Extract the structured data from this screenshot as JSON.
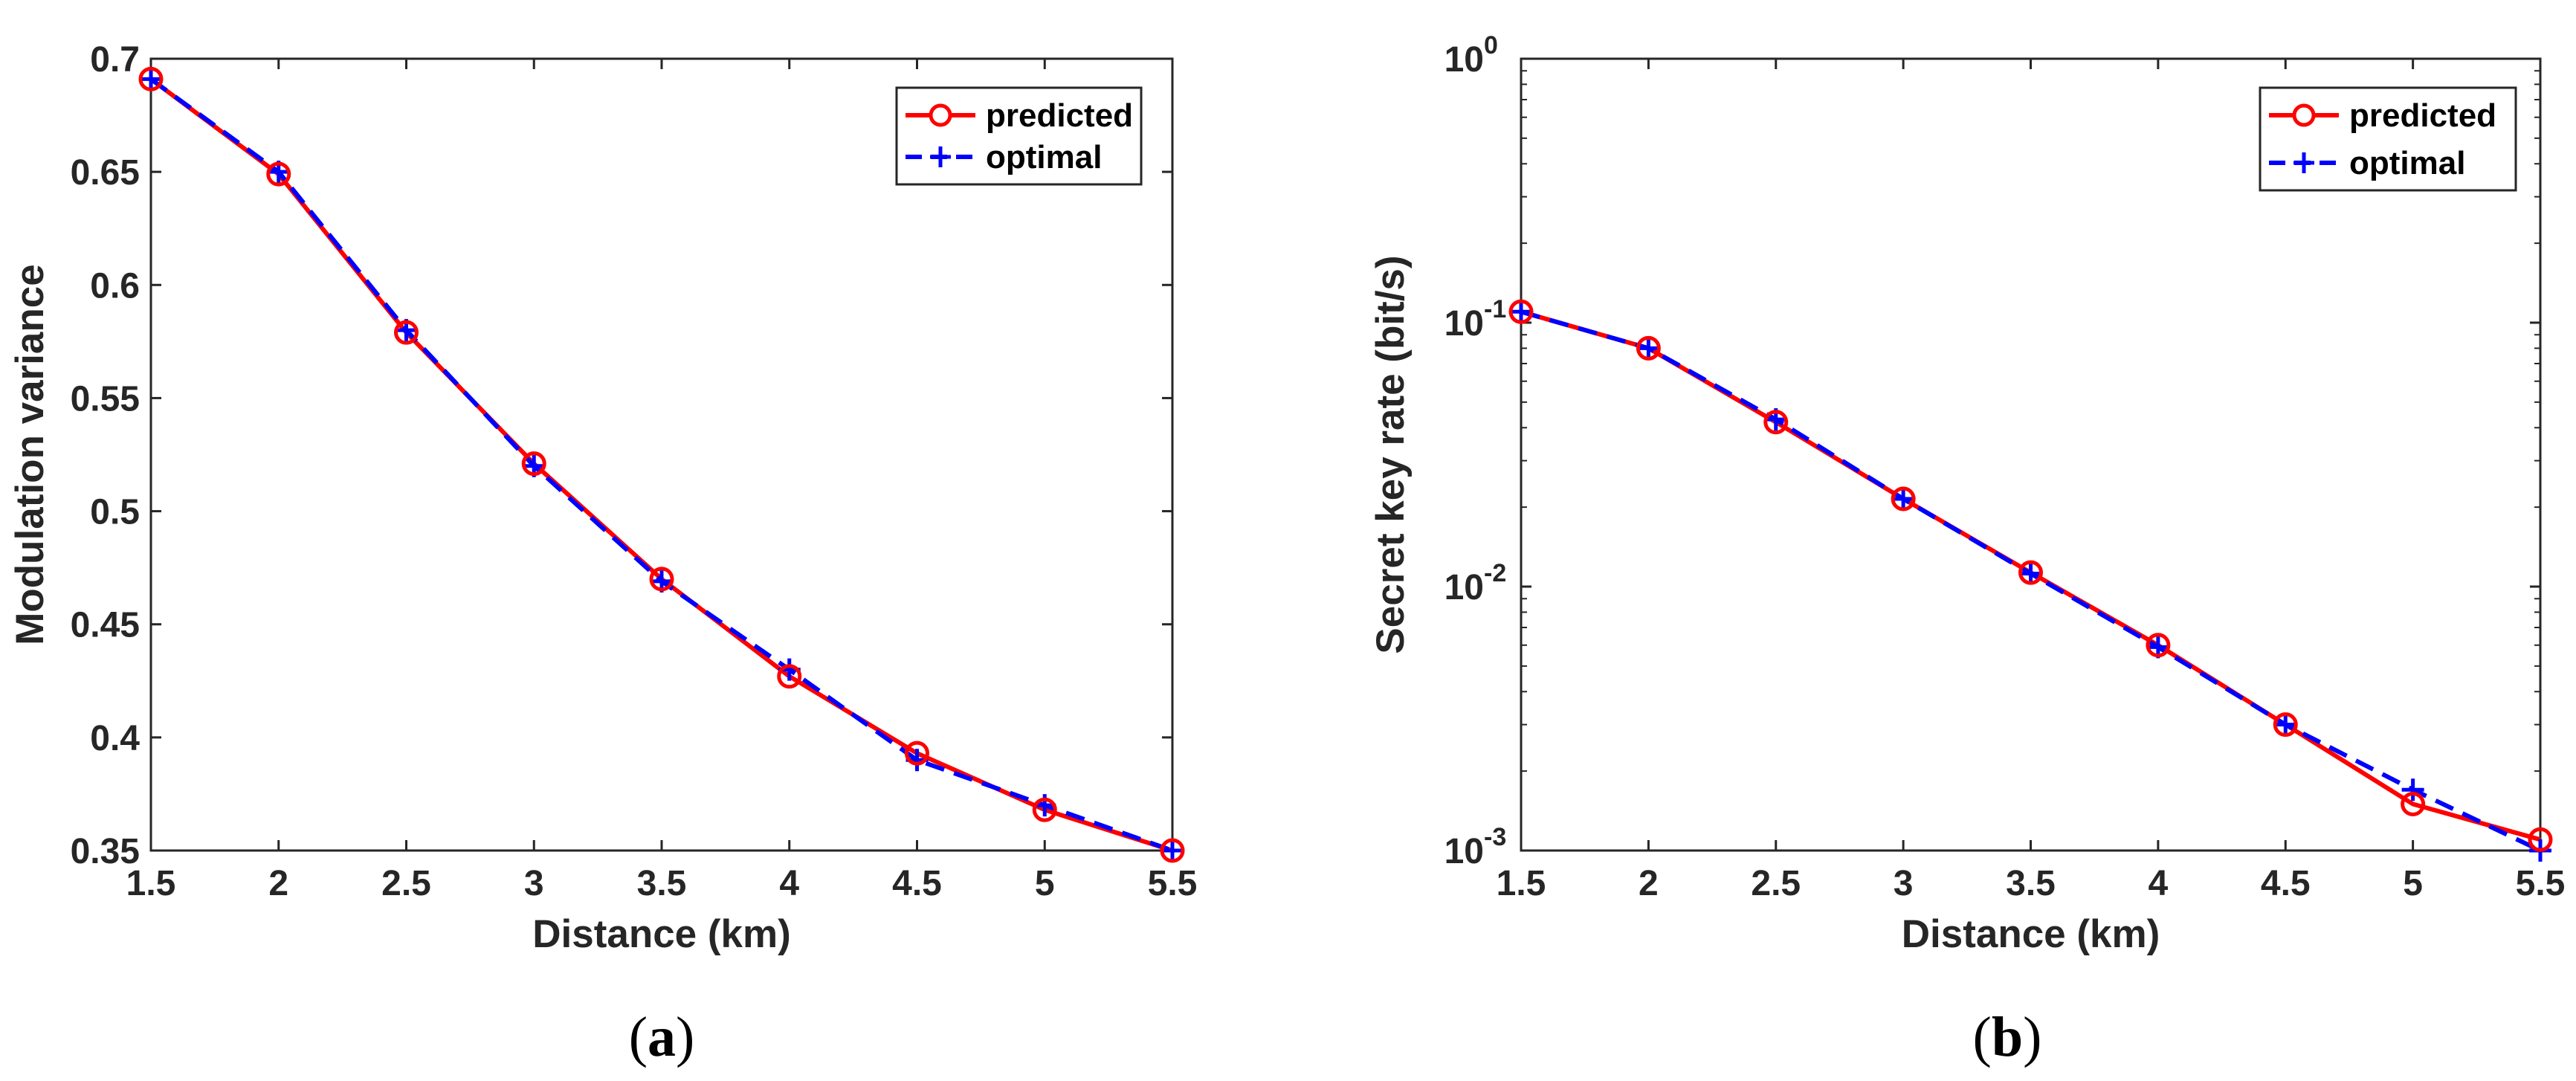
{
  "colors": {
    "predicted": "#ff0000",
    "optimal": "#0000ff",
    "axis": "#262626"
  },
  "chart_data": [
    {
      "type": "line",
      "panel": "a",
      "caption": "(a)",
      "caption_parts": [
        "(",
        "a",
        ")"
      ],
      "xlabel": "Distance (km)",
      "ylabel": "Modulation variance",
      "xlim": [
        1.5,
        5.5
      ],
      "ylim": [
        0.35,
        0.7
      ],
      "yscale": "linear",
      "xticks": [
        1.5,
        2,
        2.5,
        3,
        3.5,
        4,
        4.5,
        5,
        5.5
      ],
      "xtick_labels": [
        "1.5",
        "2",
        "2.5",
        "3",
        "3.5",
        "4",
        "4.5",
        "5",
        "5.5"
      ],
      "yticks": [
        0.35,
        0.4,
        0.45,
        0.5,
        0.55,
        0.6,
        0.65,
        0.7
      ],
      "ytick_labels": [
        "0.35",
        "0.4",
        "0.45",
        "0.5",
        "0.55",
        "0.6",
        "0.65",
        "0.7"
      ],
      "legend_position": "top-right",
      "grid": false,
      "x": [
        1.5,
        2,
        2.5,
        3,
        3.5,
        4,
        4.5,
        5,
        5.5
      ],
      "series": [
        {
          "name": "predicted",
          "style": "solid-circle",
          "values": [
            0.691,
            0.649,
            0.579,
            0.521,
            0.47,
            0.427,
            0.393,
            0.368,
            0.35
          ]
        },
        {
          "name": "optimal",
          "style": "dashed-plus",
          "values": [
            0.691,
            0.65,
            0.58,
            0.52,
            0.469,
            0.43,
            0.39,
            0.37,
            0.35
          ]
        }
      ]
    },
    {
      "type": "line",
      "panel": "b",
      "caption": "(b)",
      "caption_parts": [
        "(",
        "b",
        ")"
      ],
      "xlabel": "Distance (km)",
      "ylabel": "Secret key rate (bit/s)",
      "xlim": [
        1.5,
        5.5
      ],
      "ylim": [
        0.001,
        1
      ],
      "yscale": "log",
      "xticks": [
        1.5,
        2,
        2.5,
        3,
        3.5,
        4,
        4.5,
        5,
        5.5
      ],
      "xtick_labels": [
        "1.5",
        "2",
        "2.5",
        "3",
        "3.5",
        "4",
        "4.5",
        "5",
        "5.5"
      ],
      "yticks": [
        0.001,
        0.01,
        0.1,
        1
      ],
      "ytick_labels": [
        {
          "base": "10",
          "exp": "-3"
        },
        {
          "base": "10",
          "exp": "-2"
        },
        {
          "base": "10",
          "exp": "-1"
        },
        {
          "base": "10",
          "exp": "0"
        }
      ],
      "legend_position": "top-right",
      "grid": false,
      "x": [
        1.5,
        2,
        2.5,
        3,
        3.5,
        4,
        4.5,
        5,
        5.5
      ],
      "series": [
        {
          "name": "predicted",
          "style": "solid-circle",
          "values": [
            0.11,
            0.08,
            0.042,
            0.0215,
            0.0113,
            0.006,
            0.003,
            0.0015,
            0.0011
          ]
        },
        {
          "name": "optimal",
          "style": "dashed-plus",
          "values": [
            0.11,
            0.08,
            0.043,
            0.0215,
            0.0112,
            0.0059,
            0.003,
            0.0017,
            0.001
          ]
        }
      ]
    }
  ]
}
